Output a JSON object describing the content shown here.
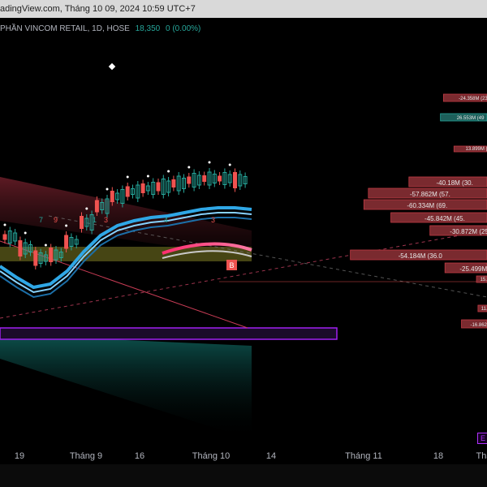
{
  "header": {
    "source_text": "adingView.com, Tháng 10 09, 2024 10:59 UTC+7"
  },
  "legend": {
    "symbol_text": "PHẦN VINCOM RETAIL, 1D, HOSE",
    "price": "18,350",
    "change": "0 (0.00%)"
  },
  "colors": {
    "background": "#000000",
    "up": "#26a69a",
    "down": "#ef5350",
    "ribbon_pink": "#ff2d6f",
    "ribbon_blue": "#2fa7e6",
    "box_purple": "#a020f0"
  },
  "chart_data": {
    "type": "line",
    "x_tick_labels": [
      "19",
      "Tháng 9",
      "16",
      "Tháng 10",
      "14",
      "Tháng 11",
      "18",
      "Thá"
    ],
    "marker_letter": "E",
    "sell_marker_letter": "B",
    "candle_counts_visible": [
      "7",
      "9",
      "1",
      "3",
      "4",
      "3"
    ],
    "volume_profile_labels": [
      {
        "text": "-24.358M (23",
        "side": "down"
      },
      {
        "text": "26.553M (49",
        "side": "up"
      },
      {
        "text": "13.899M (28",
        "side": "down"
      },
      {
        "text": "-40.18M (30.",
        "side": "down"
      },
      {
        "text": "-57.862M (57.",
        "side": "down"
      },
      {
        "text": "-60.334M (69.",
        "side": "down"
      },
      {
        "text": "-45.842M (45.",
        "side": "down"
      },
      {
        "text": "-30.872M (25.6",
        "side": "down"
      },
      {
        "text": "-54.184M (36.0",
        "side": "down"
      },
      {
        "text": "-25.499M (33.3",
        "side": "down"
      },
      {
        "text": "15.887M (33",
        "side": "down"
      },
      {
        "text": "11.999M (4",
        "side": "down"
      },
      {
        "text": "-16.862M (36.",
        "side": "down"
      }
    ],
    "volume_profile_widths": [
      0.29,
      0.31,
      0.22,
      0.52,
      0.79,
      0.82,
      0.64,
      0.38,
      0.91,
      0.28,
      0.07,
      0.06,
      0.17
    ],
    "ribbon_curve": [
      0.55,
      0.62,
      0.68,
      0.66,
      0.58,
      0.46,
      0.36,
      0.3,
      0.27,
      0.25,
      0.24,
      0.22,
      0.2,
      0.19,
      0.19,
      0.2
    ]
  }
}
